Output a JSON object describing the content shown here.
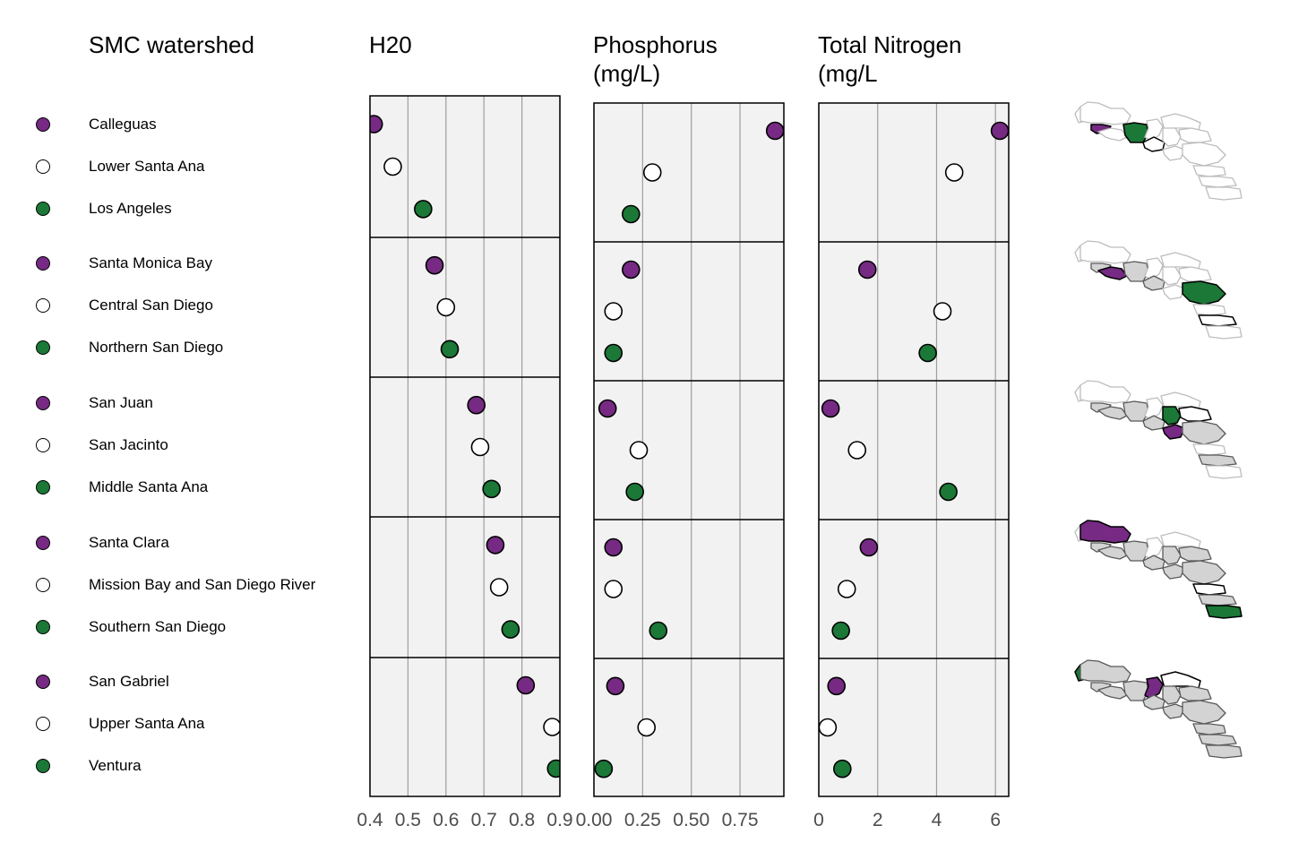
{
  "legend_title": "SMC watershed",
  "colors": {
    "purple": "#762a83",
    "white": "#ffffff",
    "green": "#1b7837",
    "highlight_bg": "#d3d3d3",
    "panel_bg": "#f2f2f2"
  },
  "groups": [
    [
      "Calleguas",
      "Lower Santa Ana",
      "Los Angeles"
    ],
    [
      "Santa Monica Bay",
      "Central San Diego",
      "Northern San Diego"
    ],
    [
      "San Juan",
      "San Jacinto",
      "Middle Santa Ana"
    ],
    [
      "Santa Clara",
      "Mission Bay and San Diego River",
      "Southern San Diego"
    ],
    [
      "San Gabriel",
      "Upper Santa Ana",
      "Ventura"
    ]
  ],
  "group_colors": [
    "purple",
    "white",
    "green"
  ],
  "chart_data": [
    {
      "type": "scatter",
      "title": "H20",
      "xlim": [
        0.4,
        0.9
      ],
      "ticks": [
        0.4,
        0.5,
        0.6,
        0.7,
        0.8,
        0.9
      ],
      "tick_labels": [
        "0.4",
        "0.5",
        "0.6",
        "0.7",
        "0.8",
        "0.9"
      ],
      "values": [
        [
          0.41,
          0.46,
          0.54
        ],
        [
          0.57,
          0.6,
          0.61
        ],
        [
          0.68,
          0.69,
          0.72
        ],
        [
          0.73,
          0.74,
          0.77
        ],
        [
          0.81,
          0.88,
          0.89
        ]
      ]
    },
    {
      "type": "scatter",
      "title": "Phosphorus\n(mg/L)",
      "xlim": [
        0,
        0.975
      ],
      "ticks": [
        0,
        0.25,
        0.5,
        0.75
      ],
      "tick_labels": [
        "0.00",
        "0.25",
        "0.50",
        "0.75"
      ],
      "values": [
        [
          0.93,
          0.3,
          0.19
        ],
        [
          0.19,
          0.1,
          0.1
        ],
        [
          0.07,
          0.23,
          0.21
        ],
        [
          0.1,
          0.1,
          0.33
        ],
        [
          0.11,
          0.27,
          0.05
        ]
      ]
    },
    {
      "type": "scatter",
      "title": "Total Nitrogen\n(mg/L",
      "xlim": [
        0,
        6.45
      ],
      "ticks": [
        0,
        2,
        4,
        6
      ],
      "tick_labels": [
        "0",
        "2",
        "4",
        "6"
      ],
      "values": [
        [
          6.15,
          4.6,
          null
        ],
        [
          1.65,
          4.2,
          3.7
        ],
        [
          0.4,
          1.3,
          4.4
        ],
        [
          1.7,
          0.95,
          0.75
        ],
        [
          0.6,
          0.3,
          0.8
        ]
      ]
    }
  ],
  "map_highlights": [
    {
      "purple": "Calleguas",
      "green": "Los Angeles",
      "white": "Lower Santa Ana"
    },
    {
      "purple": "Santa Monica Bay",
      "green": "Northern San Diego",
      "white": "Central San Diego"
    },
    {
      "purple": "San Juan",
      "green": "Middle Santa Ana",
      "white": "San Jacinto"
    },
    {
      "purple": "Santa Clara",
      "green": "Southern San Diego",
      "white": "Mission Bay and San Diego River"
    },
    {
      "purple": "San Gabriel",
      "green": "Ventura",
      "white": "Upper Santa Ana"
    }
  ]
}
